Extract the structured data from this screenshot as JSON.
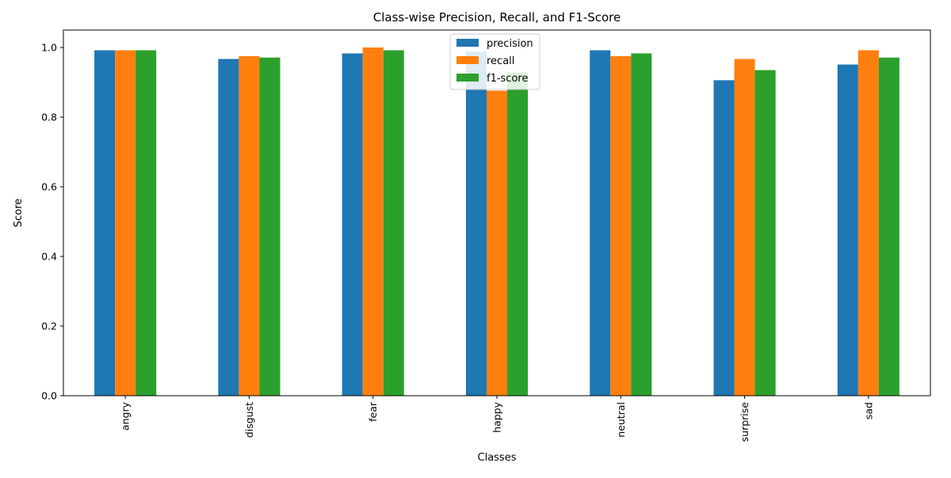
{
  "chart_data": {
    "type": "bar",
    "title": "Class-wise Precision, Recall, and F1-Score",
    "xlabel": "Classes",
    "ylabel": "Score",
    "ylim": [
      0,
      1.05
    ],
    "yticks": [
      0.0,
      0.2,
      0.4,
      0.6,
      0.8,
      1.0
    ],
    "ytick_labels": [
      "0.0",
      "0.2",
      "0.4",
      "0.6",
      "0.8",
      "1.0"
    ],
    "grid": false,
    "legend_position": "top-center",
    "categories": [
      "angry",
      "disgust",
      "fear",
      "happy",
      "neutral",
      "surprise",
      "sad"
    ],
    "series": [
      {
        "name": "precision",
        "color": "#1f77b4",
        "values": [
          0.992,
          0.967,
          0.983,
          0.988,
          0.992,
          0.906,
          0.951
        ]
      },
      {
        "name": "recall",
        "color": "#ff7f0e",
        "values": [
          0.992,
          0.975,
          1.0,
          0.876,
          0.975,
          0.967,
          0.992
        ]
      },
      {
        "name": "f1-score",
        "color": "#2ca02c",
        "values": [
          0.992,
          0.971,
          0.992,
          0.929,
          0.983,
          0.935,
          0.971
        ]
      }
    ]
  }
}
